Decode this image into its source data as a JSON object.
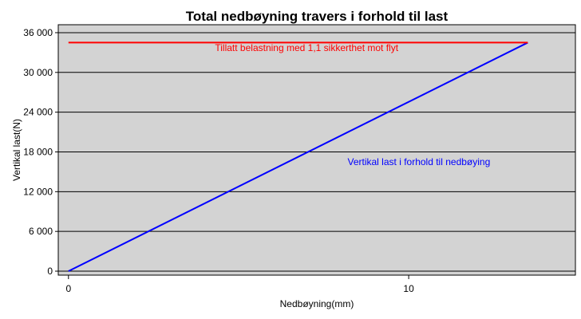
{
  "chart_data": {
    "type": "line",
    "title": "Total nedbøyning travers i forhold til last",
    "xlabel": "Nedbøyning(mm)",
    "ylabel": "Vertikal last(N)",
    "xlim": [
      -0.3,
      14.9
    ],
    "ylim": [
      -600,
      37200
    ],
    "x_ticks": [
      0,
      10
    ],
    "x_tick_labels": [
      "0",
      "10"
    ],
    "y_ticks": [
      0,
      6000,
      12000,
      18000,
      24000,
      30000,
      36000
    ],
    "y_tick_labels": [
      "0",
      "6 000",
      "12 000",
      "18 000",
      "24 000",
      "30 000",
      "36 000"
    ],
    "grid": "horizontal",
    "plot_background": "#d3d3d3",
    "series": [
      {
        "name": "Vertikal last i forhold til nedbøying",
        "color": "#0000ff",
        "x": [
          0,
          13.5
        ],
        "y": [
          0,
          34500
        ]
      },
      {
        "name": "Tillatt belastning med 1,1 sikkerthet mot flyt",
        "color": "#ff0000",
        "x": [
          0,
          13.5
        ],
        "y": [
          34500,
          34500
        ]
      }
    ],
    "annotations": [
      {
        "text": "Tillatt belastning med 1,1 sikkerthet mot flyt",
        "color": "#ff0000",
        "x": 7.0,
        "y": 33200
      },
      {
        "text": "Vertikal last i forhold til nedbøying",
        "color": "#0000ff",
        "x": 10.3,
        "y": 16000
      }
    ]
  }
}
